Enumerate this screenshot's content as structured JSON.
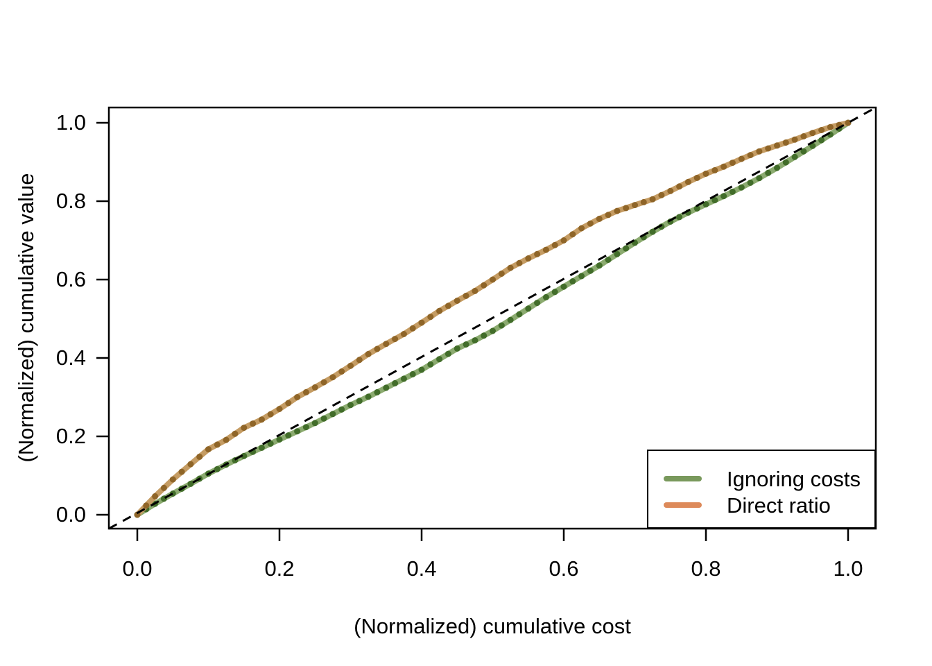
{
  "figure": {
    "background": "#ffffff",
    "axis_color": "#000000",
    "text_color": "#000000"
  },
  "chart_data": {
    "type": "line",
    "title": "",
    "xlabel": "(Normalized) cumulative cost",
    "ylabel": "(Normalized) cumulative value",
    "xlim": [
      -0.04,
      1.04
    ],
    "ylim": [
      -0.035,
      1.039
    ],
    "grid": false,
    "xticks": [
      0.0,
      0.2,
      0.4,
      0.6,
      0.8,
      1.0
    ],
    "yticks": [
      0.0,
      0.2,
      0.4,
      0.6,
      0.8,
      1.0
    ],
    "xtick_labels": [
      "0.0",
      "0.2",
      "0.4",
      "0.6",
      "0.8",
      "1.0"
    ],
    "ytick_labels": [
      "0.0",
      "0.2",
      "0.4",
      "0.6",
      "0.8",
      "1.0"
    ],
    "reference_line": {
      "style": "dashed",
      "color": "#000000",
      "from": [
        0,
        0
      ],
      "to": [
        1,
        1
      ]
    },
    "legend": {
      "position": "bottom-right",
      "entries": [
        {
          "label": "Ignoring costs",
          "color": "#79995c"
        },
        {
          "label": "Direct ratio",
          "color": "#dd8a5a"
        }
      ]
    },
    "series": [
      {
        "name": "Ignoring costs",
        "line_color": "#8cab70",
        "point_color": "#426d2a",
        "x": [
          0,
          0.025,
          0.05,
          0.075,
          0.1,
          0.125,
          0.15,
          0.175,
          0.2,
          0.225,
          0.25,
          0.275,
          0.3,
          0.325,
          0.35,
          0.375,
          0.4,
          0.425,
          0.45,
          0.475,
          0.5,
          0.525,
          0.55,
          0.575,
          0.6,
          0.625,
          0.65,
          0.675,
          0.7,
          0.725,
          0.75,
          0.775,
          0.8,
          0.825,
          0.85,
          0.875,
          0.9,
          0.925,
          0.95,
          0.975,
          1
        ],
        "y": [
          0,
          0.028,
          0.054,
          0.079,
          0.105,
          0.128,
          0.15,
          0.171,
          0.192,
          0.213,
          0.234,
          0.257,
          0.28,
          0.301,
          0.324,
          0.347,
          0.37,
          0.397,
          0.424,
          0.445,
          0.469,
          0.497,
          0.526,
          0.555,
          0.582,
          0.609,
          0.636,
          0.665,
          0.694,
          0.722,
          0.748,
          0.771,
          0.792,
          0.813,
          0.835,
          0.859,
          0.885,
          0.913,
          0.941,
          0.97,
          1
        ]
      },
      {
        "name": "Direct ratio",
        "line_color": "#c59c63",
        "point_color": "#8f6528",
        "x": [
          0,
          0.025,
          0.05,
          0.075,
          0.1,
          0.125,
          0.15,
          0.175,
          0.2,
          0.225,
          0.25,
          0.275,
          0.3,
          0.325,
          0.35,
          0.375,
          0.4,
          0.425,
          0.45,
          0.475,
          0.5,
          0.525,
          0.55,
          0.575,
          0.6,
          0.625,
          0.65,
          0.675,
          0.7,
          0.725,
          0.75,
          0.775,
          0.8,
          0.825,
          0.85,
          0.875,
          0.9,
          0.925,
          0.95,
          0.975,
          1
        ],
        "y": [
          0,
          0.047,
          0.09,
          0.129,
          0.167,
          0.191,
          0.222,
          0.243,
          0.27,
          0.3,
          0.325,
          0.351,
          0.38,
          0.41,
          0.436,
          0.461,
          0.49,
          0.52,
          0.546,
          0.571,
          0.6,
          0.63,
          0.654,
          0.676,
          0.7,
          0.731,
          0.755,
          0.775,
          0.79,
          0.805,
          0.826,
          0.849,
          0.87,
          0.888,
          0.908,
          0.927,
          0.942,
          0.957,
          0.974,
          0.989,
          1
        ]
      }
    ]
  }
}
